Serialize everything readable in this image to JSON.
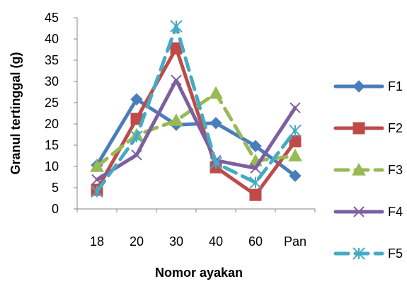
{
  "chart_data": {
    "type": "line",
    "title": "",
    "xlabel": "Nomor ayakan",
    "ylabel": "Granul tertinggal (g)",
    "categories": [
      "18",
      "20",
      "30",
      "40",
      "60",
      "Pan"
    ],
    "ylim": [
      0,
      45
    ],
    "yticks": [
      0,
      5,
      10,
      15,
      20,
      25,
      30,
      35,
      40,
      45
    ],
    "grid": false,
    "legend_position": "right",
    "series": [
      {
        "name": "F1",
        "values": [
          10.3,
          25.8,
          19.8,
          20.2,
          14.8,
          7.8
        ],
        "color": "#4a7ebb",
        "marker": "diamond",
        "dash": "solid"
      },
      {
        "name": "F2",
        "values": [
          4.5,
          21.2,
          37.8,
          9.8,
          3.3,
          15.9
        ],
        "color": "#be4b48",
        "marker": "square",
        "dash": "solid"
      },
      {
        "name": "F3",
        "values": [
          10.0,
          17.4,
          20.8,
          27.2,
          11.3,
          12.5
        ],
        "color": "#98b954",
        "marker": "triangle",
        "dash": "dashed"
      },
      {
        "name": "F4",
        "values": [
          6.9,
          12.7,
          30.3,
          11.4,
          9.6,
          23.8
        ],
        "color": "#7d5fa0",
        "marker": "x",
        "dash": "solid"
      },
      {
        "name": "F5",
        "values": [
          4.1,
          17.0,
          43.0,
          10.8,
          6.2,
          18.4
        ],
        "color": "#46aac5",
        "marker": "star",
        "dash": "dashed"
      }
    ]
  }
}
